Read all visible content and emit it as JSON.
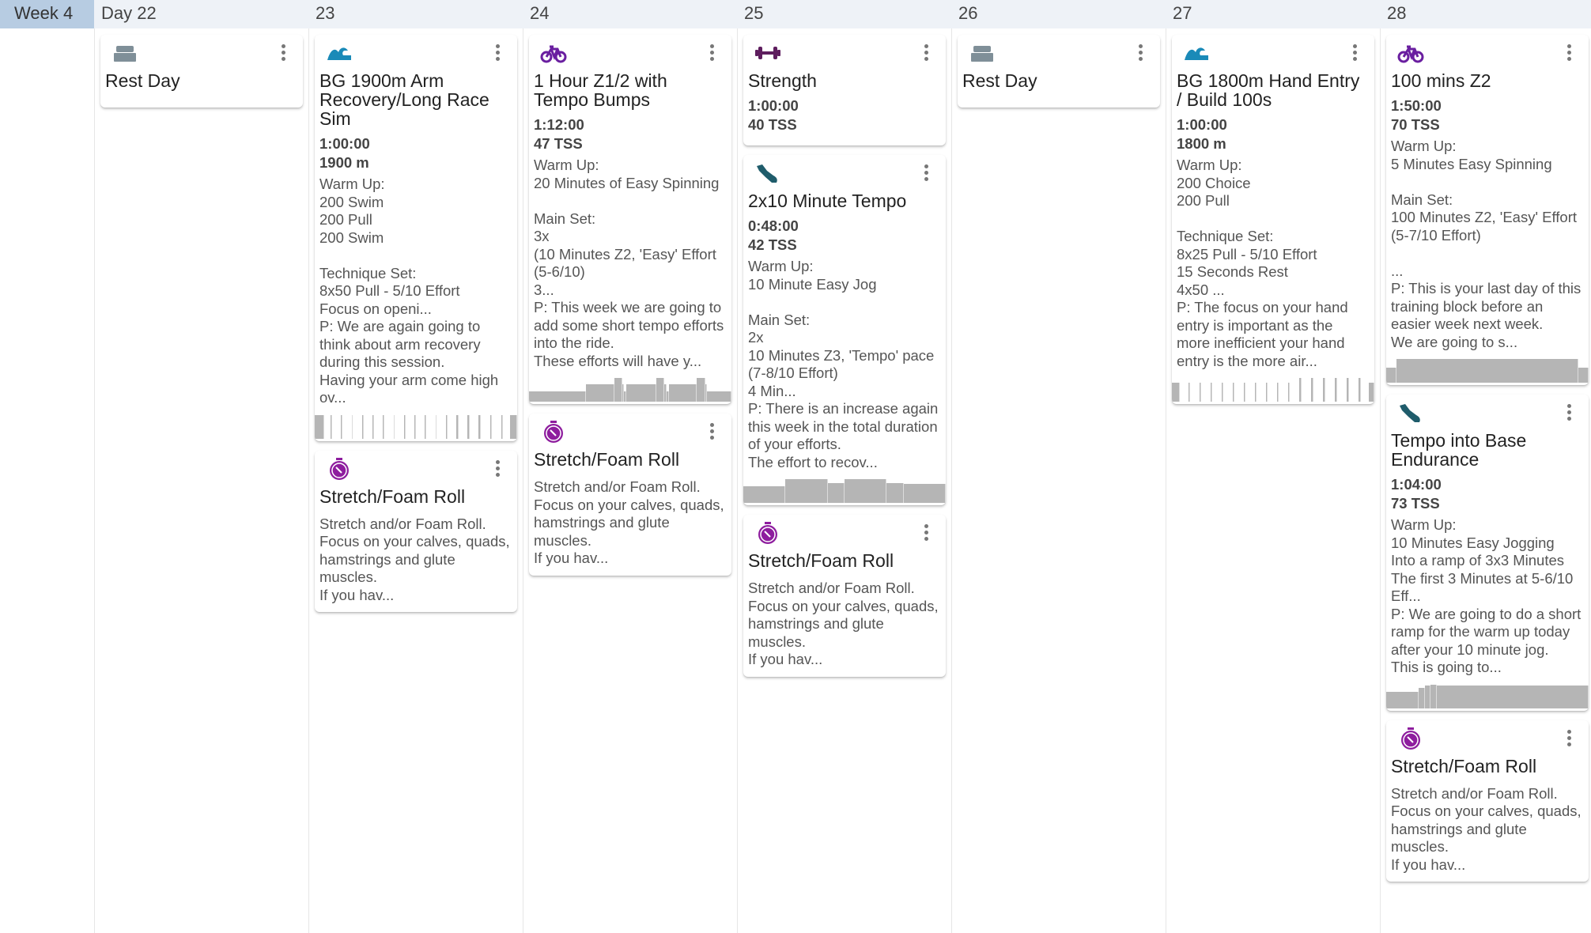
{
  "header": {
    "week_label": "Week 4",
    "days": [
      "Day 22",
      "23",
      "24",
      "25",
      "26",
      "27",
      "28"
    ]
  },
  "colors": {
    "rest": "#7f8f98",
    "swim": "#1a8ab8",
    "bike": "#6a1fa0",
    "strength": "#5e1d5e",
    "run": "#1f5c6b",
    "stretch": "#8e1d9e",
    "profile": "#b5b5b5"
  },
  "days": [
    {
      "workouts": [
        {
          "icon": "bed-icon",
          "type": "rest",
          "title": "Rest Day",
          "stats": [],
          "description": ""
        }
      ]
    },
    {
      "workouts": [
        {
          "icon": "swim-icon",
          "type": "swim",
          "title": "BG 1900m Arm Recovery/Long Race Sim",
          "stats": [
            "1:00:00",
            "1900 m"
          ],
          "description": "Warm Up:\n200 Swim\n200 Pull\n200 Swim\n\nTechnique Set:\n8x50 Pull - 5/10 Effort\nFocus on openi...\nP: We are again going to think about arm recovery during this session.\nHaving your arm come high ov...",
          "profile": [
            [
              4,
              1
            ],
            [
              3,
              0
            ],
            [
              0.6,
              1
            ],
            [
              4,
              0
            ],
            [
              0.6,
              1
            ],
            [
              4,
              0
            ],
            [
              0.6,
              1
            ],
            [
              4,
              0
            ],
            [
              0.6,
              1
            ],
            [
              4,
              0
            ],
            [
              0.6,
              1
            ],
            [
              4,
              0
            ],
            [
              0.6,
              1
            ],
            [
              4,
              0
            ],
            [
              0.6,
              1
            ],
            [
              4,
              0
            ],
            [
              0.6,
              1
            ],
            [
              4,
              0
            ],
            [
              0.6,
              1
            ],
            [
              4,
              0
            ],
            [
              0.6,
              1
            ],
            [
              4,
              0
            ],
            [
              0.6,
              1
            ],
            [
              4,
              0
            ],
            [
              0.6,
              1
            ],
            [
              4,
              0
            ],
            [
              0.9,
              1
            ],
            [
              4,
              0
            ],
            [
              0.9,
              1
            ],
            [
              4,
              0
            ],
            [
              0.9,
              1
            ],
            [
              4,
              0
            ],
            [
              0.9,
              1
            ],
            [
              4,
              0
            ],
            [
              0.9,
              1
            ],
            [
              3,
              0
            ],
            [
              3,
              1
            ]
          ]
        },
        {
          "icon": "stopwatch-icon",
          "type": "stretch",
          "title": "Stretch/Foam Roll",
          "stats": [],
          "description": "Stretch and/or Foam Roll.\nFocus on your calves, quads, hamstrings and glute muscles.\nIf you hav..."
        }
      ]
    },
    {
      "workouts": [
        {
          "icon": "bike-icon",
          "type": "bike",
          "title": "1 Hour Z1/2 with Tempo Bumps",
          "stats": [
            "1:12:00",
            "47 TSS"
          ],
          "description": "Warm Up:\n20 Minutes of Easy Spinning\n\nMain Set:\n3x\n(10 Minutes Z2, 'Easy' Effort (5-6/10)\n3...\nP: This week we are going to add some short tempo efforts into the ride.\nThese efforts will have y...",
          "profile": [
            [
              28,
              0.45
            ],
            [
              14,
              0.75
            ],
            [
              4,
              1
            ],
            [
              1,
              0.75
            ],
            [
              1,
              0.45
            ],
            [
              15,
              0.75
            ],
            [
              4,
              1
            ],
            [
              1,
              0.75
            ],
            [
              1,
              0.45
            ],
            [
              14,
              0.75
            ],
            [
              4,
              1
            ],
            [
              1,
              0.75
            ],
            [
              12,
              0.45
            ]
          ]
        },
        {
          "icon": "stopwatch-icon",
          "type": "stretch",
          "title": "Stretch/Foam Roll",
          "stats": [],
          "description": "Stretch and/or Foam Roll.\nFocus on your calves, quads, hamstrings and glute muscles.\nIf you hav..."
        }
      ]
    },
    {
      "workouts": [
        {
          "icon": "dumbbell-icon",
          "type": "strength",
          "title": "Strength",
          "stats": [
            "1:00:00",
            "40 TSS"
          ],
          "description": ""
        },
        {
          "icon": "running-shoe-icon",
          "type": "run",
          "title": "2x10 Minute Tempo",
          "stats": [
            "0:48:00",
            "42 TSS"
          ],
          "description": "Warm Up:\n10 Minute Easy Jog\n\nMain Set:\n2x\n10 Minutes Z3, 'Tempo' pace (7-8/10 Effort)\n4 Min...\nP: There is an increase again this week in the total duration of your efforts.\nThe effort to recov...",
          "profile": [
            [
              20,
              0.7
            ],
            [
              20,
              1
            ],
            [
              8,
              0.85
            ],
            [
              20,
              1
            ],
            [
              8,
              0.85
            ],
            [
              20,
              0.8
            ]
          ]
        },
        {
          "icon": "stopwatch-icon",
          "type": "stretch",
          "title": "Stretch/Foam Roll",
          "stats": [],
          "description": "Stretch and/or Foam Roll.\nFocus on your calves, quads, hamstrings and glute muscles.\nIf you hav..."
        }
      ]
    },
    {
      "workouts": [
        {
          "icon": "bed-icon",
          "type": "rest",
          "title": "Rest Day",
          "stats": [],
          "description": ""
        }
      ]
    },
    {
      "workouts": [
        {
          "icon": "swim-icon",
          "type": "swim",
          "title": "BG 1800m Hand Entry / Build 100s",
          "stats": [
            "1:00:00",
            "1800 m"
          ],
          "description": "Warm Up:\n200 Choice\n200 Pull\n\nTechnique Set:\n8x25 Pull - 5/10 Effort\n15 Seconds Rest\n4x50 ...\nP: The focus on your hand entry is important as the more inefficient your hand entry is the more air...",
          "profile": [
            [
              3,
              0.8
            ],
            [
              3,
              0
            ],
            [
              0.6,
              0.8
            ],
            [
              3.5,
              0
            ],
            [
              0.6,
              0.8
            ],
            [
              3.5,
              0
            ],
            [
              0.6,
              0.8
            ],
            [
              3.5,
              0
            ],
            [
              0.6,
              0.8
            ],
            [
              3.5,
              0
            ],
            [
              0.6,
              0.8
            ],
            [
              3.5,
              0
            ],
            [
              0.6,
              0.8
            ],
            [
              3.5,
              0
            ],
            [
              0.6,
              0.8
            ],
            [
              3.5,
              0
            ],
            [
              0.6,
              0.8
            ],
            [
              3.5,
              0
            ],
            [
              0.6,
              0.8
            ],
            [
              3.5,
              0
            ],
            [
              0.6,
              0.8
            ],
            [
              3.5,
              0
            ],
            [
              0.9,
              1
            ],
            [
              3.5,
              0
            ],
            [
              0.9,
              1
            ],
            [
              3.5,
              0
            ],
            [
              0.9,
              1
            ],
            [
              3.5,
              0
            ],
            [
              0.9,
              1
            ],
            [
              3.5,
              0
            ],
            [
              0.9,
              1
            ],
            [
              3.5,
              0
            ],
            [
              0.9,
              1
            ],
            [
              3,
              0
            ],
            [
              2,
              0.8
            ]
          ]
        }
      ]
    },
    {
      "workouts": [
        {
          "icon": "bike-icon",
          "type": "bike",
          "title": "100 mins Z2",
          "stats": [
            "1:50:00",
            "70 TSS"
          ],
          "description": "Warm Up:\n5 Minutes Easy Spinning\n\nMain Set:\n100 Minutes Z2, 'Easy' Effort (5-7/10 Effort)\n\n...\nP: This is your last day of this training block before an easier week next week.\nWe are going to s...",
          "profile": [
            [
              5,
              0.65
            ],
            [
              90,
              1
            ],
            [
              5,
              0.65
            ]
          ]
        },
        {
          "icon": "running-shoe-icon",
          "type": "run",
          "title": "Tempo into Base Endurance",
          "stats": [
            "1:04:00",
            "73 TSS"
          ],
          "description": "Warm Up:\n10 Minutes Easy Jogging\nInto a ramp of 3x3 Minutes\nThe first 3 Minutes at 5-6/10 Eff...\nP: We are going to do a short ramp for the warm up today after your 10 minute jog.\nThis is going to...",
          "profile": [
            [
              16,
              0.7
            ],
            [
              3,
              0.85
            ],
            [
              3,
              0.95
            ],
            [
              3,
              1
            ],
            [
              75,
              0.95
            ]
          ]
        },
        {
          "icon": "stopwatch-icon",
          "type": "stretch",
          "title": "Stretch/Foam Roll",
          "stats": [],
          "description": "Stretch and/or Foam Roll.\nFocus on your calves, quads, hamstrings and glute muscles.\nIf you hav..."
        }
      ]
    }
  ]
}
